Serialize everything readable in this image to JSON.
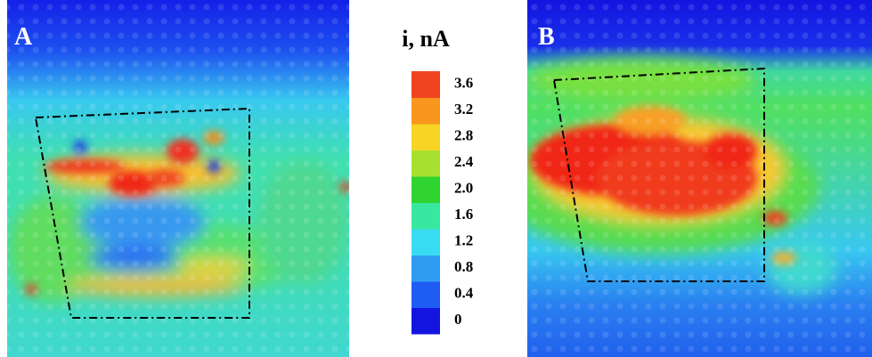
{
  "panels": [
    {
      "label": "A"
    },
    {
      "label": "B"
    }
  ],
  "colorbar": {
    "title": "i, nA",
    "ticks": [
      0,
      0.4,
      0.8,
      1.2,
      1.6,
      {
        "value": 2,
        "label": "2.0"
      },
      2.4,
      2.8,
      3.2,
      3.6
    ],
    "colors": [
      "#1414e0",
      "#1f5cf2",
      "#2f9cf2",
      "#38dcf2",
      "#38e8a0",
      "#30d430",
      "#a8e032",
      "#f8d424",
      "#f8961e",
      "#f04420"
    ]
  }
}
